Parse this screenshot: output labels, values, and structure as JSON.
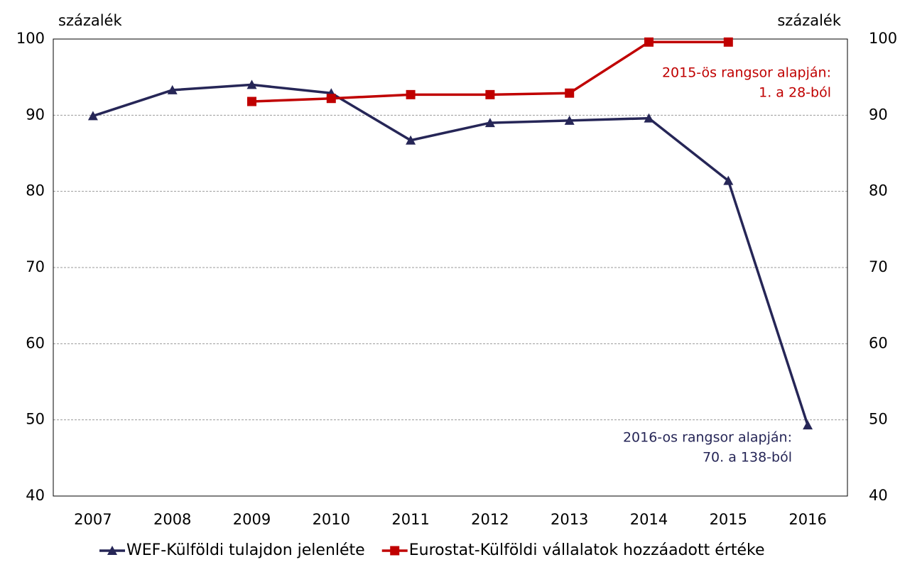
{
  "chart_data": {
    "type": "line",
    "ylabel": "százalék",
    "y2label": "százalék",
    "categories": [
      "2007",
      "2008",
      "2009",
      "2010",
      "2011",
      "2012",
      "2013",
      "2014",
      "2015",
      "2016"
    ],
    "series": [
      {
        "name": "WEF-Külföldi tulajdon jelenléte",
        "color": "#262657",
        "marker": "triangle",
        "values": [
          89.9,
          93.3,
          94.0,
          92.9,
          86.7,
          89.0,
          89.3,
          89.6,
          81.4,
          49.3
        ]
      },
      {
        "name": "Eurostat-Külföldi vállalatok hozzáadott értéke",
        "color": "#c00000",
        "marker": "square",
        "axis": "y2",
        "values": [
          null,
          null,
          91.8,
          92.2,
          92.7,
          92.7,
          92.9,
          99.6,
          99.6,
          null
        ]
      }
    ],
    "ylim": [
      40,
      100
    ],
    "yticks": [
      40,
      50,
      60,
      70,
      80,
      90,
      100
    ],
    "y2lim": [
      40,
      100
    ],
    "y2ticks": [
      40,
      50,
      60,
      70,
      80,
      90,
      100
    ],
    "grid": true,
    "legend": "bottom",
    "annotations": [
      {
        "lines": [
          "2015-ös rangsor alapján:",
          "1. a 28-ból"
        ],
        "color": "#c00000"
      },
      {
        "lines": [
          "2016-os rangsor alapján:",
          "70. a 138-ból"
        ],
        "color": "#262657"
      }
    ]
  }
}
